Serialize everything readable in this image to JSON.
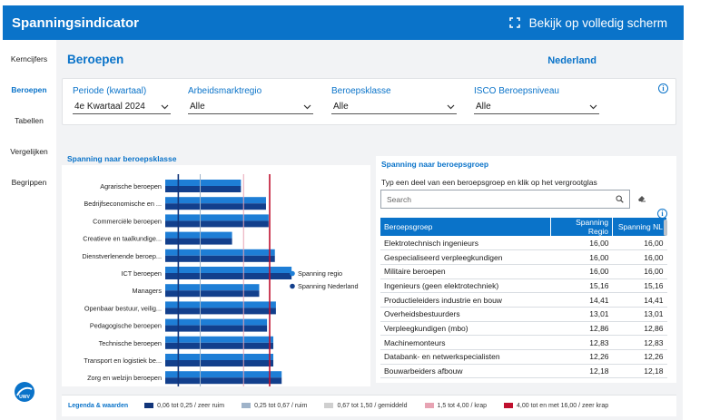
{
  "app": {
    "title": "Spanningsindicator",
    "fullscreen_label": "Bekijk op volledig scherm"
  },
  "sidebar": {
    "items": [
      {
        "label": "Kerncijfers"
      },
      {
        "label": "Beroepen"
      },
      {
        "label": "Tabellen"
      },
      {
        "label": "Vergelijken"
      },
      {
        "label": "Begrippen"
      }
    ],
    "logo_text": "UWV"
  },
  "page": {
    "title": "Beroepen",
    "region": "Nederland"
  },
  "filters": [
    {
      "label": "Periode (kwartaal)",
      "value": "4e Kwartaal 2024"
    },
    {
      "label": "Arbeidsmarktregio",
      "value": "Alle"
    },
    {
      "label": "Beroepsklasse",
      "value": "Alle"
    },
    {
      "label": "ISCO Beroepsniveau",
      "value": "Alle"
    }
  ],
  "chart_panel": {
    "title": "Spanning naar beroepsklasse"
  },
  "chart_data": {
    "type": "bar",
    "orientation": "horizontal",
    "categories": [
      "Agrarische beroepen",
      "Bedrijfseconomische en ...",
      "Commerciële beroepen",
      "Creatieve en taalkundige...",
      "Dienstverlenende beroep...",
      "ICT beroepen",
      "Managers",
      "Openbaar bestuur, veilig...",
      "Pedagogische beroepen",
      "Technische beroepen",
      "Transport en logistiek be...",
      "Zorg en welzijn beroepen"
    ],
    "series": [
      {
        "name": "Spanning regio",
        "color": "#1e7ed6",
        "values": [
          1.45,
          1.93,
          1.98,
          1.28,
          2.1,
          2.42,
          1.8,
          2.12,
          1.95,
          2.07,
          2.07,
          2.23
        ]
      },
      {
        "name": "Spanning Nederland",
        "color": "#123f8c",
        "values": [
          1.45,
          1.93,
          1.98,
          1.28,
          2.1,
          2.42,
          1.8,
          2.12,
          1.95,
          2.07,
          2.07,
          2.23
        ]
      }
    ],
    "legend": "right",
    "reference_lines": [
      {
        "value": 0.25,
        "color": "#12357a"
      },
      {
        "value": 0.67,
        "color": "#9fb3c9"
      },
      {
        "value": 1.5,
        "color": "#e7a3b3"
      },
      {
        "value": 2.0,
        "color": "#c0102e"
      }
    ]
  },
  "group_panel": {
    "title": "Spanning naar beroepsgroep",
    "hint": "Typ een deel van een beroepsgroep en klik op het vergrootglas",
    "search_placeholder": "Search",
    "columns": [
      "Beroepsgroep",
      "Spanning Regio",
      "Spanning NL"
    ],
    "rows": [
      {
        "name": "Elektrotechnisch ingenieurs",
        "regio": "16,00",
        "nl": "16,00"
      },
      {
        "name": "Gespecialiseerd verpleegkundigen",
        "regio": "16,00",
        "nl": "16,00"
      },
      {
        "name": "Militaire beroepen",
        "regio": "16,00",
        "nl": "16,00"
      },
      {
        "name": "Ingenieurs (geen elektrotechniek)",
        "regio": "15,16",
        "nl": "15,16"
      },
      {
        "name": "Productieleiders industrie en bouw",
        "regio": "14,41",
        "nl": "14,41"
      },
      {
        "name": "Overheidsbestuurders",
        "regio": "13,01",
        "nl": "13,01"
      },
      {
        "name": "Verpleegkundigen (mbo)",
        "regio": "12,86",
        "nl": "12,86"
      },
      {
        "name": "Machinemonteurs",
        "regio": "12,83",
        "nl": "12,83"
      },
      {
        "name": "Databank- en netwerkspecialisten",
        "regio": "12,26",
        "nl": "12,26"
      },
      {
        "name": "Bouwarbeiders afbouw",
        "regio": "12,18",
        "nl": "12,18"
      }
    ]
  },
  "legend_bar": {
    "title": "Legenda & waarden",
    "items": [
      {
        "label": "0,06 tot 0,25 / zeer ruim",
        "color": "#12357a"
      },
      {
        "label": "0,25  tot 0,67 / ruim",
        "color": "#9fb3c9"
      },
      {
        "label": "0,67 tot 1,50 / gemiddeld",
        "color": "#cfcfcf"
      },
      {
        "label": "1,5 tot 4,00 / krap",
        "color": "#e7a3b3"
      },
      {
        "label": "4,00 tot en met 16,00 / zeer krap",
        "color": "#c0102e"
      }
    ]
  }
}
